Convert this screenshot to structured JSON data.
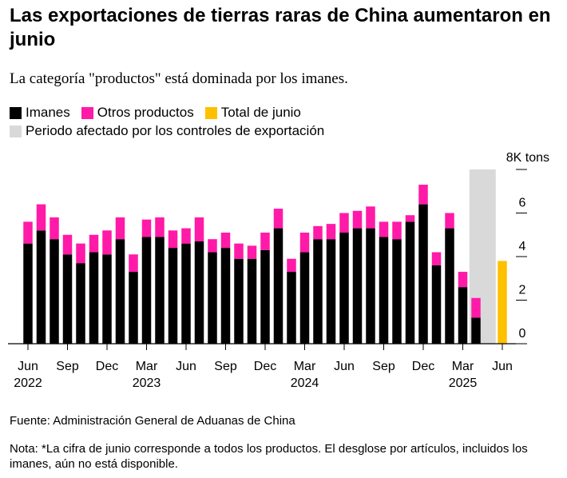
{
  "title": "Las exportaciones de tierras raras de China aumentaron en junio",
  "subtitle": "La categoría \"productos\" está dominada por los imanes.",
  "legend": {
    "imanes": "Imanes",
    "otros": "Otros productos",
    "total_junio": "Total de junio",
    "periodo": "Periodo afectado por los controles de exportación"
  },
  "colors": {
    "imanes": "#000000",
    "otros": "#ff1aa8",
    "total_junio": "#ffc000",
    "periodo": "#d9d9d9"
  },
  "source": "Fuente: Administración General de Aduanas de China",
  "note": "Nota: *La cifra de junio corresponde a todos los productos. El desglose por artículos, incluidos los imanes, aún no está disponible.",
  "chart_data": {
    "type": "bar",
    "stacked": true,
    "unit": "8K tons",
    "ylim": [
      0,
      8
    ],
    "yticks": [
      {
        "value": 0,
        "label": "0"
      },
      {
        "value": 2,
        "label": "2"
      },
      {
        "value": 4,
        "label": "4"
      },
      {
        "value": 6,
        "label": "6"
      },
      {
        "value": 8,
        "label": "8K tons"
      }
    ],
    "categories": [
      "2022-06",
      "2022-07",
      "2022-08",
      "2022-09",
      "2022-10",
      "2022-11",
      "2022-12",
      "2023-01",
      "2023-02",
      "2023-03",
      "2023-04",
      "2023-05",
      "2023-06",
      "2023-07",
      "2023-08",
      "2023-09",
      "2023-10",
      "2023-11",
      "2023-12",
      "2024-01",
      "2024-02",
      "2024-03",
      "2024-04",
      "2024-05",
      "2024-06",
      "2024-07",
      "2024-08",
      "2024-09",
      "2024-10",
      "2024-11",
      "2024-12",
      "2025-01",
      "2025-02",
      "2025-03",
      "2025-04",
      "2025-05",
      "2025-06"
    ],
    "series": [
      {
        "name": "Imanes",
        "values": [
          4.6,
          5.2,
          4.8,
          4.1,
          3.7,
          4.2,
          4.1,
          4.8,
          3.3,
          4.9,
          4.9,
          4.4,
          4.6,
          4.7,
          4.2,
          4.4,
          3.9,
          3.9,
          4.3,
          5.3,
          3.3,
          4.2,
          4.8,
          4.8,
          5.1,
          5.3,
          5.3,
          4.9,
          4.8,
          5.6,
          6.4,
          3.6,
          5.3,
          2.6,
          1.2,
          null,
          null
        ]
      },
      {
        "name": "Otros productos",
        "values": [
          1.0,
          1.2,
          1.0,
          0.9,
          0.9,
          0.8,
          1.1,
          1.0,
          0.8,
          0.8,
          0.9,
          0.8,
          0.7,
          1.1,
          0.6,
          0.7,
          0.7,
          0.6,
          0.8,
          0.9,
          0.6,
          0.9,
          0.6,
          0.7,
          0.9,
          0.8,
          1.0,
          0.7,
          0.8,
          0.3,
          0.9,
          0.6,
          0.7,
          0.7,
          0.9,
          null,
          null
        ]
      },
      {
        "name": "Total de junio",
        "values": [
          null,
          null,
          null,
          null,
          null,
          null,
          null,
          null,
          null,
          null,
          null,
          null,
          null,
          null,
          null,
          null,
          null,
          null,
          null,
          null,
          null,
          null,
          null,
          null,
          null,
          null,
          null,
          null,
          null,
          null,
          null,
          null,
          null,
          null,
          null,
          null,
          3.8
        ]
      }
    ],
    "shaded_period": {
      "label": "Periodo afectado por los controles de exportación",
      "from": "2025-04",
      "to": "2025-05"
    },
    "xticks": [
      {
        "category": "2022-06",
        "label": "Jun",
        "year": "2022"
      },
      {
        "category": "2022-09",
        "label": "Sep",
        "year": ""
      },
      {
        "category": "2022-12",
        "label": "Dec",
        "year": ""
      },
      {
        "category": "2023-03",
        "label": "Mar",
        "year": "2023"
      },
      {
        "category": "2023-06",
        "label": "Jun",
        "year": ""
      },
      {
        "category": "2023-09",
        "label": "Sep",
        "year": ""
      },
      {
        "category": "2023-12",
        "label": "Dec",
        "year": ""
      },
      {
        "category": "2024-03",
        "label": "Mar",
        "year": "2024"
      },
      {
        "category": "2024-06",
        "label": "Jun",
        "year": ""
      },
      {
        "category": "2024-09",
        "label": "Sep",
        "year": ""
      },
      {
        "category": "2024-12",
        "label": "Dec",
        "year": ""
      },
      {
        "category": "2025-03",
        "label": "Mar",
        "year": "2025"
      },
      {
        "category": "2025-06",
        "label": "Jun",
        "year": ""
      }
    ]
  }
}
